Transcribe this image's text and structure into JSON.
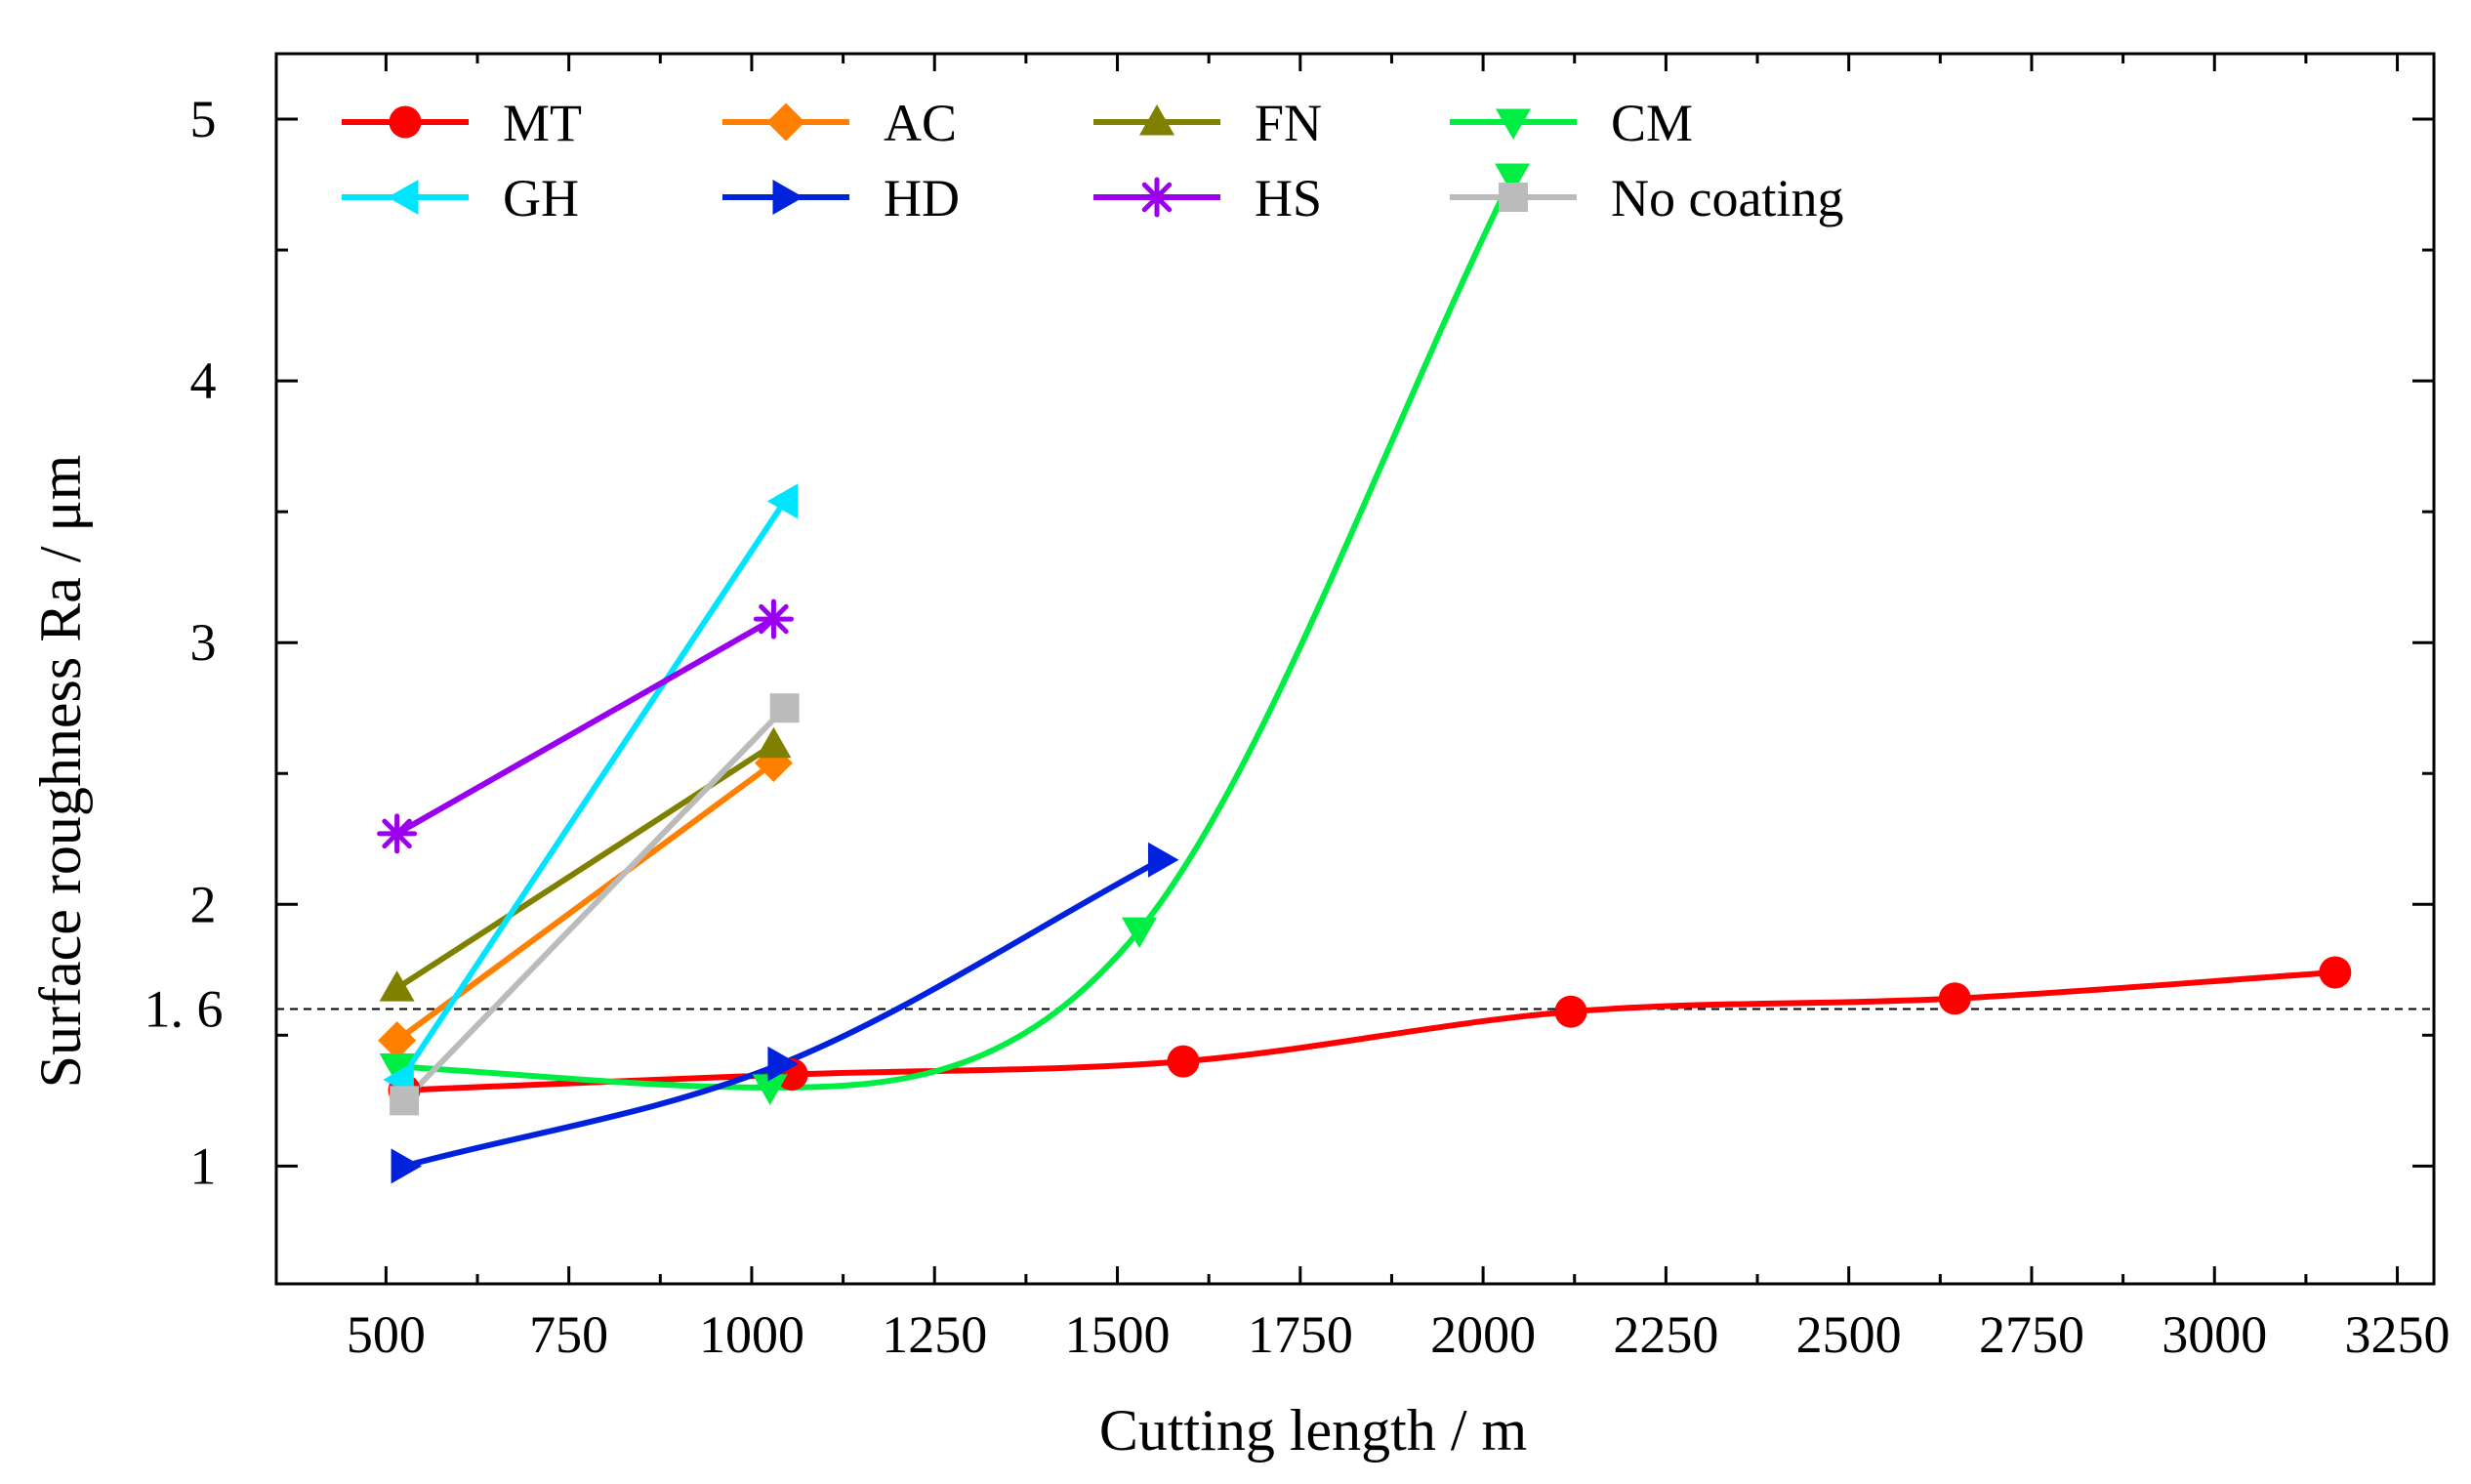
{
  "chart_data": {
    "type": "line",
    "title": "",
    "xlabel": "Cutting length / m",
    "ylabel": "Surface roughness Ra / μm",
    "xlim": [
      350,
      3300
    ],
    "ylim": [
      0.55,
      5.25
    ],
    "xticks": [
      500,
      750,
      1000,
      1250,
      1500,
      1750,
      2000,
      2250,
      2500,
      2750,
      3000,
      3250
    ],
    "yticks": [
      1,
      2,
      3,
      4,
      5
    ],
    "yticks_minor": [
      1.5,
      2.5,
      3.5,
      4.5
    ],
    "extra_ytick": {
      "value": 1.6,
      "label": "1. 6"
    },
    "reference_line": {
      "y": 1.6,
      "style": "dashed",
      "color": "#000000"
    },
    "grid": false,
    "legend": {
      "placement": "top-left",
      "columns": 4
    },
    "series": [
      {
        "name": "MT",
        "color": "#ff0000",
        "marker": "circle",
        "smooth": true,
        "x": [
          525,
          1055,
          1590,
          2120,
          2645,
          3165
        ],
        "y": [
          1.29,
          1.35,
          1.4,
          1.59,
          1.64,
          1.74
        ]
      },
      {
        "name": "AC",
        "color": "#ff8000",
        "marker": "diamond",
        "smooth": false,
        "x": [
          515,
          1030
        ],
        "y": [
          1.48,
          2.54
        ]
      },
      {
        "name": "FN",
        "color": "#808000",
        "marker": "triangle-up",
        "smooth": false,
        "x": [
          515,
          1030
        ],
        "y": [
          1.68,
          2.61
        ]
      },
      {
        "name": "CM",
        "color": "#00ee44",
        "marker": "triangle-down",
        "smooth": true,
        "x": [
          515,
          1025,
          1530,
          2040
        ],
        "y": [
          1.38,
          1.3,
          1.9,
          4.78
        ]
      },
      {
        "name": "GH",
        "color": "#00e5ff",
        "marker": "triangle-left",
        "smooth": false,
        "x": [
          520,
          1045
        ],
        "y": [
          1.33,
          3.54
        ]
      },
      {
        "name": "HD",
        "color": "#0022dd",
        "marker": "triangle-right",
        "smooth": true,
        "x": [
          525,
          1040,
          1560
        ],
        "y": [
          1.0,
          1.39,
          2.17
        ]
      },
      {
        "name": "HS",
        "color": "#9900ee",
        "marker": "asterisk",
        "smooth": false,
        "x": [
          515,
          1030
        ],
        "y": [
          2.27,
          3.09
        ]
      },
      {
        "name": "No coating",
        "color": "#bbbbbb",
        "marker": "square",
        "smooth": false,
        "x": [
          525,
          1045
        ],
        "y": [
          1.25,
          2.75
        ]
      }
    ]
  }
}
